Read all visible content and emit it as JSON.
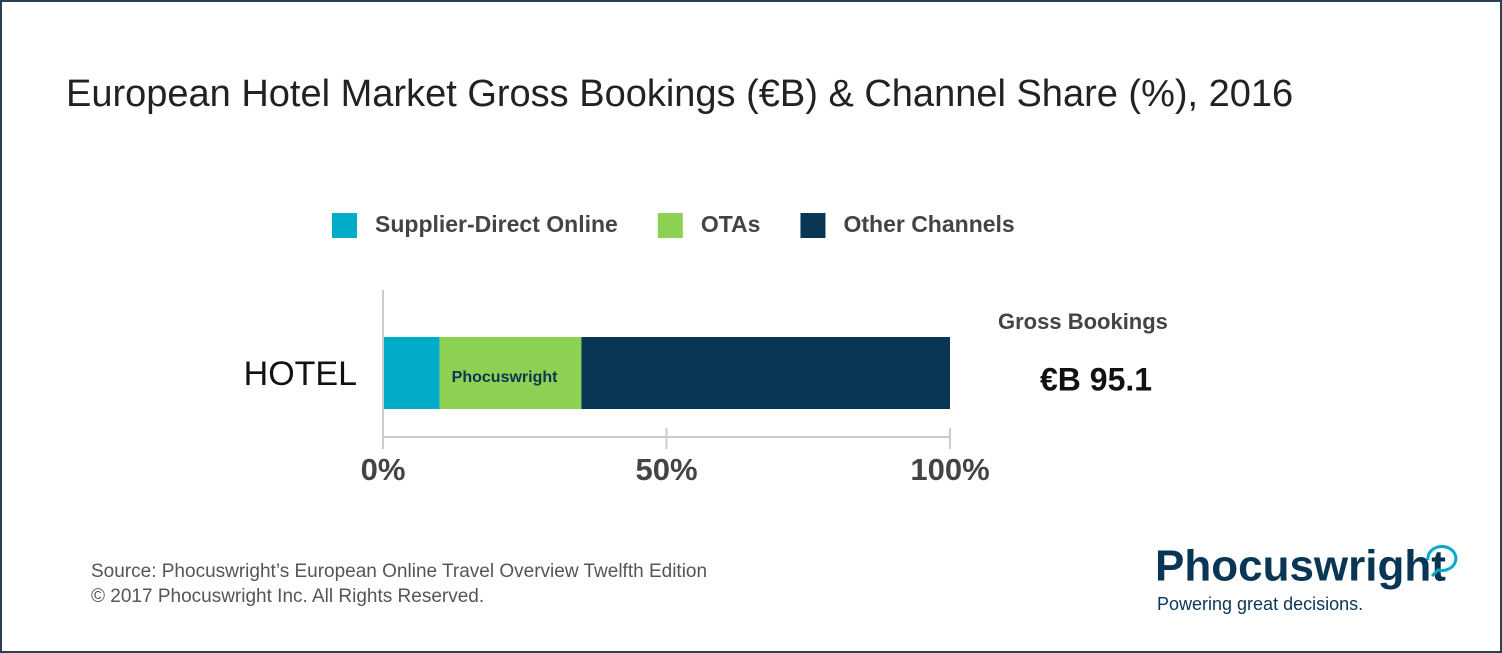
{
  "chart_data": {
    "type": "bar",
    "orientation": "horizontal",
    "stacked": true,
    "title": "European Hotel Market Gross Bookings (€B) & Channel Share (%), 2016",
    "categories": [
      "HOTEL"
    ],
    "series": [
      {
        "name": "Supplier-Direct Online",
        "color": "#00acc8",
        "values": [
          10
        ]
      },
      {
        "name": "OTAs",
        "color": "#8cd151",
        "values": [
          25
        ]
      },
      {
        "name": "Other Channels",
        "color": "#0a3655",
        "values": [
          65
        ]
      }
    ],
    "xlim": [
      0,
      100
    ],
    "xticks": [
      {
        "value": 0,
        "label": "0%"
      },
      {
        "value": 50,
        "label": "50%"
      },
      {
        "value": 100,
        "label": "100%"
      }
    ],
    "legend": "top",
    "annotations": [
      "Gross Bookings",
      "€B 95.1"
    ],
    "watermark": "Phocuswright"
  },
  "footer": {
    "source": "Source: Phocuswright’s European Online Travel Overview Twelfth Edition",
    "copyright": "© 2017 Phocuswright Inc. All Rights Reserved."
  },
  "logo": {
    "name": "Phocuswright",
    "tagline": "Powering great decisions."
  }
}
